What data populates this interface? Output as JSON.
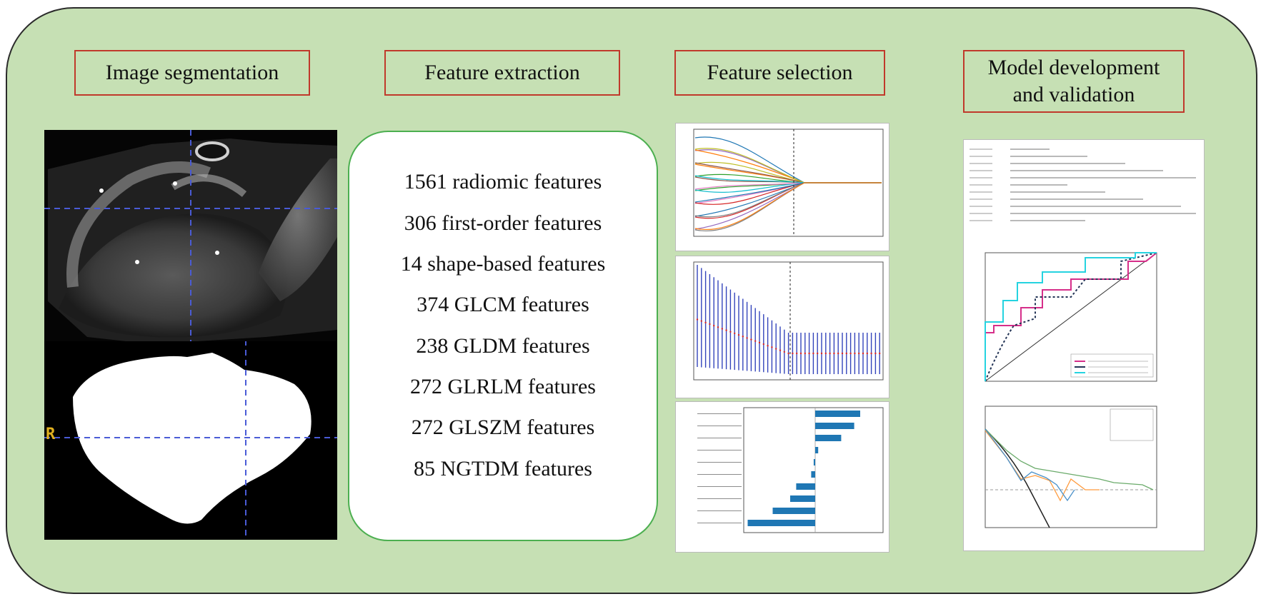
{
  "headers": {
    "segmentation": "Image segmentation",
    "extraction": "Feature extraction",
    "selection": "Feature selection",
    "model_line1": "Model development",
    "model_line2": "and validation"
  },
  "features": [
    "1561 radiomic features",
    "306 first-order features",
    "14 shape-based features",
    "374 GLCM features",
    "238 GLDM features",
    "272 GLRLM features",
    "272 GLSZM features",
    "85 NGTDM features"
  ],
  "mask_marker": "R",
  "colors": {
    "panel": "#c6e0b4",
    "header_border": "#c0392b",
    "feature_box_border": "#4caf50",
    "crosshair": "#4a5bd6",
    "coef_bar": "#1f77b4",
    "roc_clinical": "#d62f8a",
    "roc_combined": "#25d3e0"
  }
}
